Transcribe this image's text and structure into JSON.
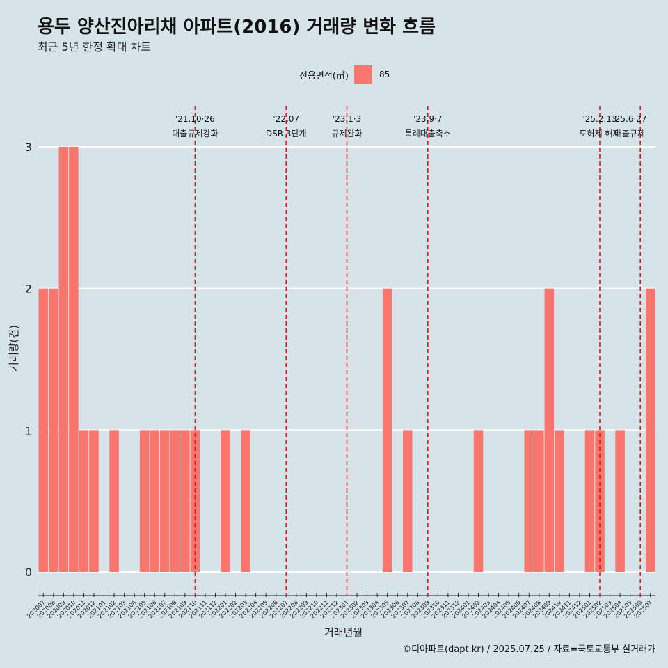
{
  "title": "용두 양산진아리채 아파트(2016) 거래량 변화 흐름",
  "subtitle": "최근 5년 한정 확대 차트",
  "caption": "©디아파트(dapt.kr) / 2025.07.25 / 자료=국토교통부 실거래가",
  "colors": {
    "bar": "#f8766d",
    "background": "#d6e4ea",
    "grid": "#ffffff",
    "event_line": "#e8141a"
  },
  "chart_data": {
    "type": "bar",
    "title": "용두 양산진아리채 아파트(2016) 거래량 변화 흐름",
    "xlabel": "거래년월",
    "ylabel": "거래량(건)",
    "legend_title": "전용면적(㎡)",
    "legend_position": "top",
    "grid": true,
    "ylim": [
      0,
      3
    ],
    "yticks": [
      0,
      1,
      2,
      3
    ],
    "series": [
      {
        "name": "85"
      }
    ],
    "categories": [
      "202007",
      "202008",
      "202009",
      "202010",
      "202011",
      "202012",
      "202101",
      "202102",
      "202103",
      "202104",
      "202105",
      "202106",
      "202107",
      "202108",
      "202109",
      "202110",
      "202111",
      "202112",
      "202201",
      "202202",
      "202203",
      "202204",
      "202205",
      "202206",
      "202207",
      "202208",
      "202209",
      "202210",
      "202211",
      "202212",
      "202301",
      "202302",
      "202303",
      "202304",
      "202305",
      "202306",
      "202307",
      "202308",
      "202309",
      "202310",
      "202311",
      "202312",
      "202401",
      "202402",
      "202403",
      "202404",
      "202405",
      "202406",
      "202407",
      "202408",
      "202409",
      "202410",
      "202411",
      "202412",
      "202501",
      "202502",
      "202503",
      "202504",
      "202505",
      "202506",
      "202507"
    ],
    "values": [
      2,
      2,
      3,
      3,
      1,
      1,
      0,
      1,
      0,
      0,
      1,
      1,
      1,
      1,
      1,
      1,
      0,
      0,
      1,
      0,
      1,
      0,
      0,
      0,
      0,
      0,
      0,
      0,
      0,
      0,
      0,
      0,
      0,
      0,
      2,
      0,
      1,
      0,
      0,
      0,
      0,
      0,
      0,
      1,
      0,
      0,
      0,
      0,
      1,
      1,
      2,
      1,
      0,
      0,
      1,
      1,
      0,
      1,
      0,
      0,
      2
    ],
    "events": [
      {
        "category": "202110",
        "date": "'21.10·26",
        "label": "대출규제강화"
      },
      {
        "category": "202207",
        "date": "'22.07",
        "label": "DSR 3단계"
      },
      {
        "category": "202301",
        "date": "'23.1·3",
        "label": "규제완화"
      },
      {
        "category": "202309",
        "date": "'23.9·7",
        "label": "특례대출축소"
      },
      {
        "category": "202502",
        "date": "'25.2.13",
        "label": "토허제 해제"
      },
      {
        "category": "202506",
        "date": "'25.6·27",
        "label": "대출규제"
      }
    ]
  }
}
